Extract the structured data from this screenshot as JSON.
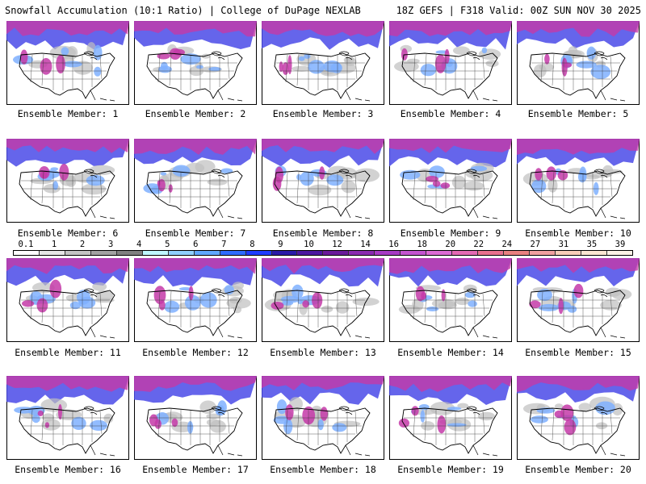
{
  "header": {
    "left": "Snowfall Accumulation (10:1 Ratio) | College of DuPage NEXLAB",
    "right": "18Z GEFS | F318 Valid: 00Z SUN NOV 30 2025"
  },
  "panel_label_prefix": "Ensemble Member: ",
  "members": [
    "1",
    "2",
    "3",
    "4",
    "5",
    "6",
    "7",
    "8",
    "9",
    "10",
    "11",
    "12",
    "13",
    "14",
    "15",
    "16",
    "17",
    "18",
    "19",
    "20"
  ],
  "colorbar": {
    "labels": [
      "0.1",
      "1",
      "2",
      "3",
      "4",
      "5",
      "6",
      "7",
      "8",
      "9",
      "10",
      "12",
      "14",
      "16",
      "18",
      "20",
      "22",
      "24",
      "27",
      "31",
      "35",
      "39"
    ],
    "colors": [
      "#ffffff",
      "#e6e6e6",
      "#c4c4c4",
      "#a2a2a2",
      "#808080",
      "#bff7ff",
      "#8fd0ff",
      "#5fa8ff",
      "#2f6cff",
      "#1f3cff",
      "#2a1aa8",
      "#4b17a0",
      "#6a1a9a",
      "#8a2ab0",
      "#a63ac4",
      "#c454d0",
      "#dc6ad4",
      "#e46ab4",
      "#e8708e",
      "#e88080",
      "#f0a0a0",
      "#f8cdb8",
      "#fbe6d2",
      "#fdf2e6"
    ]
  },
  "colors": {
    "land": "#ffffff",
    "border": "#000000",
    "heavy_snow": "#c43aa8",
    "moderate_snow": "#4a4ae8",
    "light_snow": "#7fb0ff",
    "trace_snow": "#bfbfbf"
  }
}
